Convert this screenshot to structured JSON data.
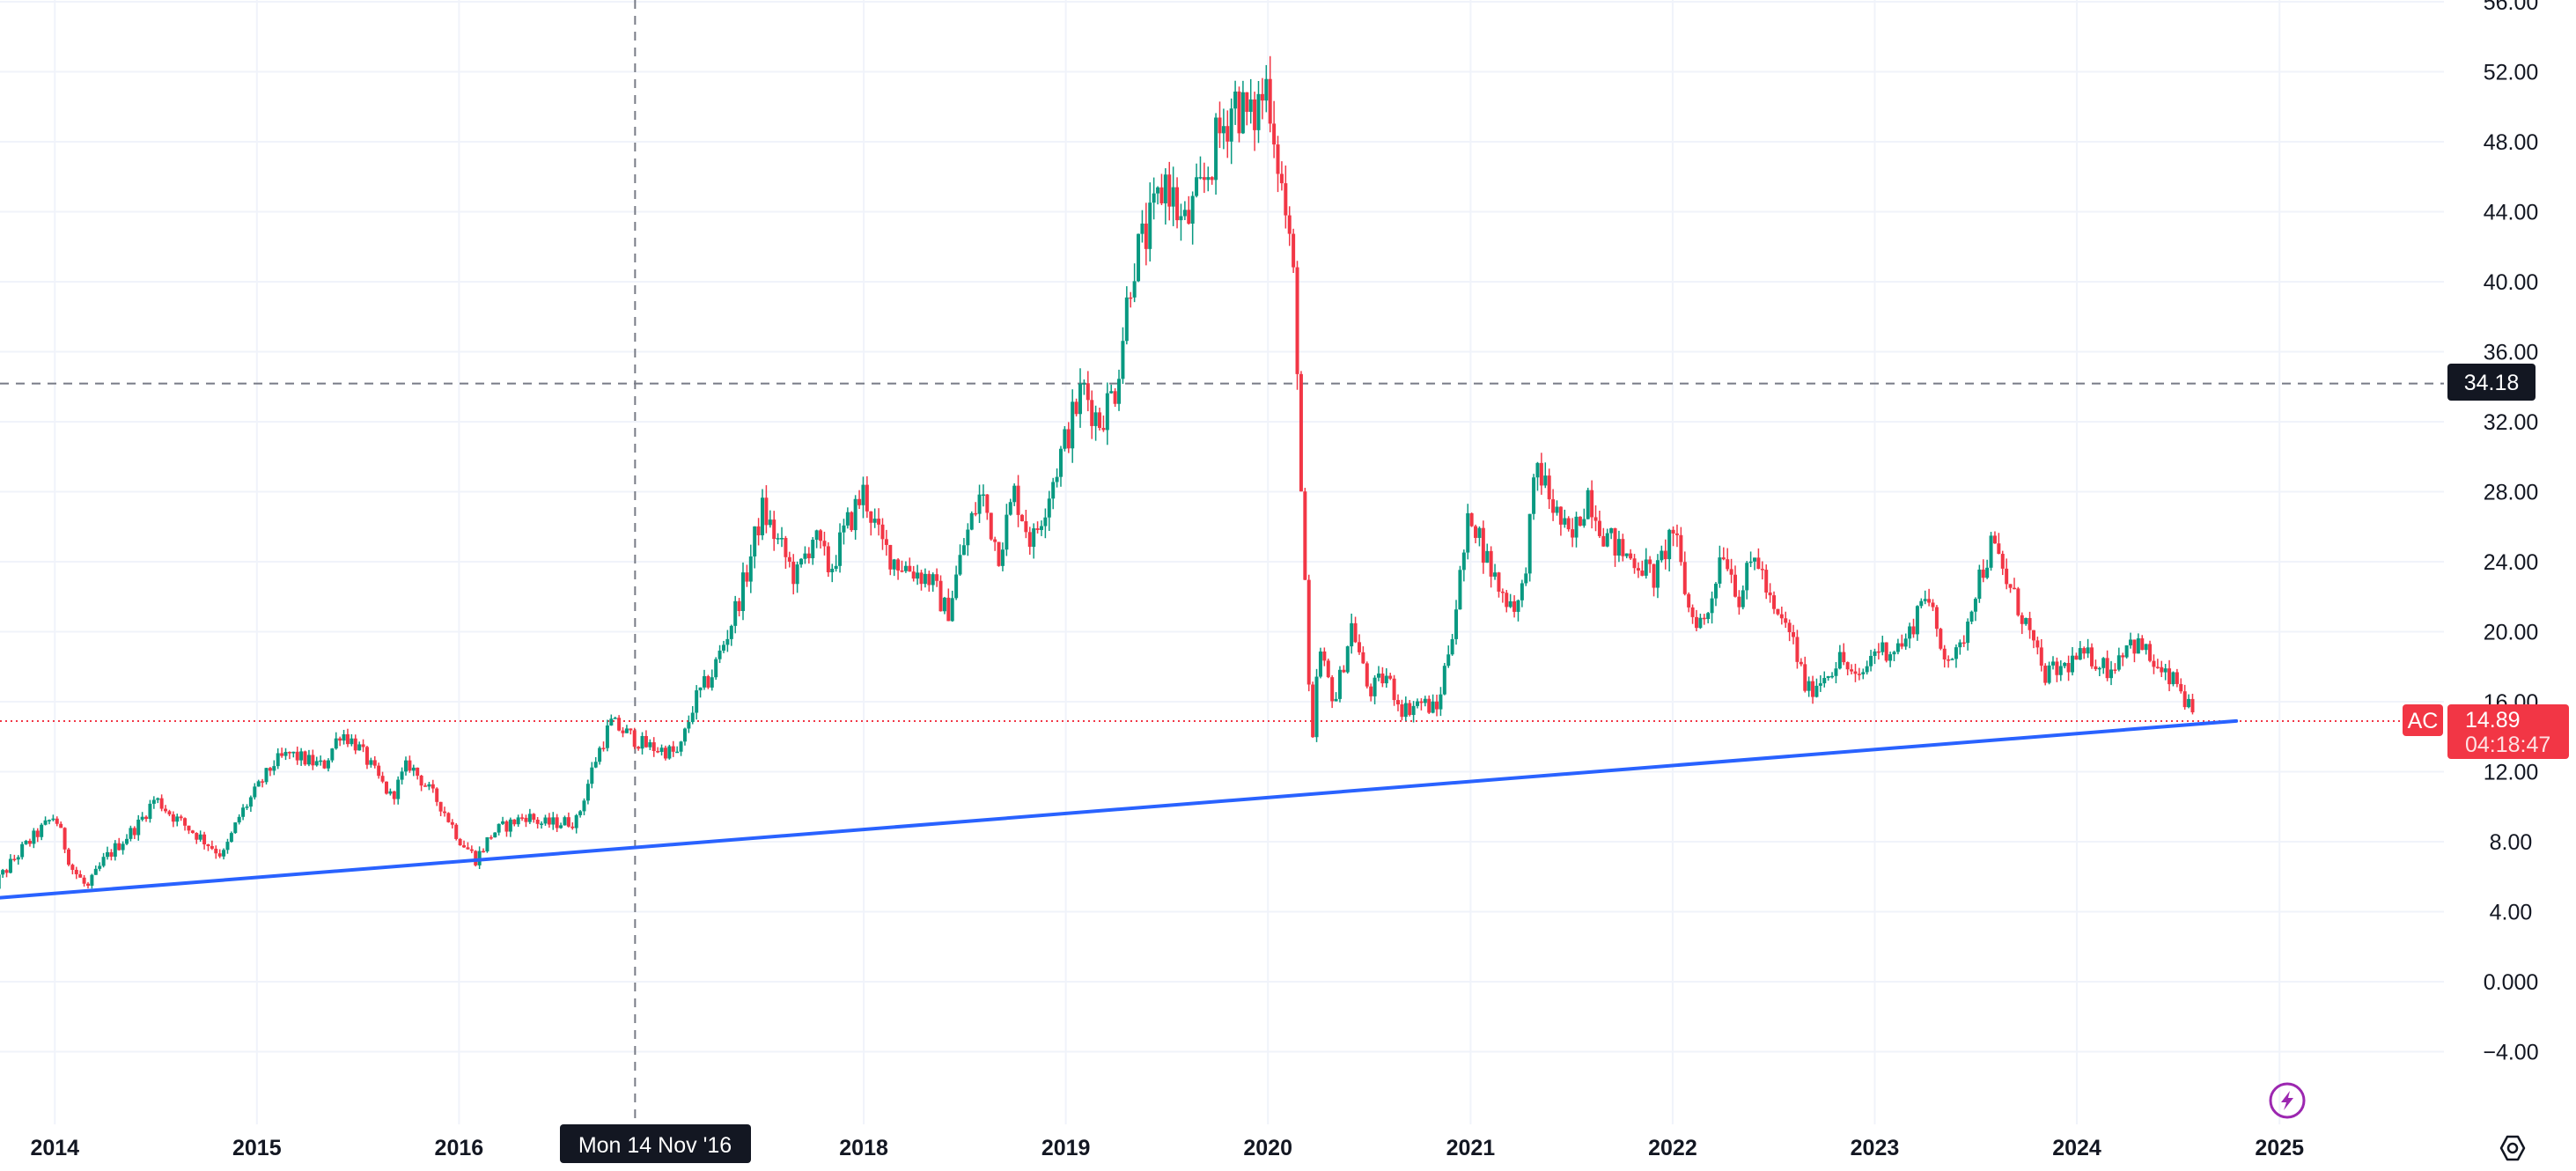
{
  "chart_data": {
    "type": "candlestick",
    "symbol": "AC",
    "x_ticks": [
      "2014",
      "2015",
      "2016",
      "2018",
      "2019",
      "2020",
      "2021",
      "2022",
      "2023",
      "2024",
      "2025"
    ],
    "y_ticks": [
      "56.00",
      "52.00",
      "48.00",
      "44.00",
      "40.00",
      "36.00",
      "32.00",
      "28.00",
      "24.00",
      "20.00",
      "16.00",
      "12.00",
      "8.00",
      "4.00",
      "0.000",
      "−4.00"
    ],
    "ylim": [
      -8.2,
      56.4
    ],
    "xlim": [
      "2013-09-24",
      "2025-10-25"
    ],
    "up_color": "#089981",
    "down_color": "#f23645",
    "trendline_color": "#2962ff",
    "trendline": [
      {
        "date": "2013-09-24",
        "price": 4.8
      },
      {
        "date": "2024-10-15",
        "price": 14.9
      }
    ],
    "last_price": {
      "value": "14.89",
      "countdown": "04:18:47",
      "y": 14.89
    },
    "crosshair": {
      "date_label": "Mon 14 Nov '16",
      "date": "2016-11-14",
      "price_label": "34.18",
      "price": 34.18
    },
    "series": [
      {
        "date": "2013-09",
        "close": 5.0
      },
      {
        "date": "2013-11",
        "close": 7.5
      },
      {
        "date": "2014-01",
        "close": 9.5
      },
      {
        "date": "2014-02",
        "close": 6.5
      },
      {
        "date": "2014-03",
        "close": 5.3
      },
      {
        "date": "2014-04",
        "close": 7.0
      },
      {
        "date": "2014-06",
        "close": 9.0
      },
      {
        "date": "2014-07",
        "close": 10.5
      },
      {
        "date": "2014-08",
        "close": 9.5
      },
      {
        "date": "2014-10",
        "close": 8.0
      },
      {
        "date": "2014-11",
        "close": 7.2
      },
      {
        "date": "2014-12",
        "close": 9.5
      },
      {
        "date": "2015-01",
        "close": 11.0
      },
      {
        "date": "2015-02",
        "close": 12.5
      },
      {
        "date": "2015-03",
        "close": 13.0
      },
      {
        "date": "2015-05",
        "close": 12.3
      },
      {
        "date": "2015-06",
        "close": 14.3
      },
      {
        "date": "2015-07",
        "close": 13.5
      },
      {
        "date": "2015-08",
        "close": 12.0
      },
      {
        "date": "2015-09",
        "close": 10.5
      },
      {
        "date": "2015-10",
        "close": 12.5
      },
      {
        "date": "2015-12",
        "close": 10.0
      },
      {
        "date": "2016-01",
        "close": 8.2
      },
      {
        "date": "2016-02",
        "close": 7.0
      },
      {
        "date": "2016-03",
        "close": 8.5
      },
      {
        "date": "2016-05",
        "close": 9.5
      },
      {
        "date": "2016-06",
        "close": 9.0
      },
      {
        "date": "2016-08",
        "close": 9.2
      },
      {
        "date": "2016-09",
        "close": 12.5
      },
      {
        "date": "2016-10",
        "close": 14.8
      },
      {
        "date": "2016-12",
        "close": 13.5
      },
      {
        "date": "2017-02",
        "close": 13.0
      },
      {
        "date": "2017-03",
        "close": 16.0
      },
      {
        "date": "2017-04",
        "close": 17.5
      },
      {
        "date": "2017-05",
        "close": 20.0
      },
      {
        "date": "2017-06",
        "close": 23.0
      },
      {
        "date": "2017-07",
        "close": 27.0
      },
      {
        "date": "2017-08",
        "close": 25.0
      },
      {
        "date": "2017-09",
        "close": 23.0
      },
      {
        "date": "2017-10",
        "close": 25.5
      },
      {
        "date": "2017-11",
        "close": 23.5
      },
      {
        "date": "2017-12",
        "close": 26.0
      },
      {
        "date": "2018-01",
        "close": 28.0
      },
      {
        "date": "2018-02",
        "close": 25.0
      },
      {
        "date": "2018-03",
        "close": 24.0
      },
      {
        "date": "2018-05",
        "close": 23.0
      },
      {
        "date": "2018-06",
        "close": 21.0
      },
      {
        "date": "2018-07",
        "close": 25.0
      },
      {
        "date": "2018-08",
        "close": 28.0
      },
      {
        "date": "2018-09",
        "close": 24.5
      },
      {
        "date": "2018-10",
        "close": 28.0
      },
      {
        "date": "2018-11",
        "close": 25.0
      },
      {
        "date": "2018-12",
        "close": 28.0
      },
      {
        "date": "2019-01",
        "close": 31.0
      },
      {
        "date": "2019-02",
        "close": 34.0
      },
      {
        "date": "2019-03",
        "close": 32.0
      },
      {
        "date": "2019-04",
        "close": 34.0
      },
      {
        "date": "2019-05",
        "close": 41.0
      },
      {
        "date": "2019-06",
        "close": 43.0
      },
      {
        "date": "2019-07",
        "close": 46.0
      },
      {
        "date": "2019-08",
        "close": 43.0
      },
      {
        "date": "2019-09",
        "close": 45.0
      },
      {
        "date": "2019-10",
        "close": 48.0
      },
      {
        "date": "2019-11",
        "close": 50.5
      },
      {
        "date": "2019-12",
        "close": 49.0
      },
      {
        "date": "2020-01",
        "close": 51.5
      },
      {
        "date": "2020-02",
        "close": 44.0
      },
      {
        "date": "2020-02-20",
        "close": 39.0
      },
      {
        "date": "2020-03",
        "close": 28.0
      },
      {
        "date": "2020-03-20",
        "close": 12.5
      },
      {
        "date": "2020-04",
        "close": 19.0
      },
      {
        "date": "2020-05",
        "close": 16.0
      },
      {
        "date": "2020-06",
        "close": 20.5
      },
      {
        "date": "2020-07",
        "close": 16.5
      },
      {
        "date": "2020-08",
        "close": 17.5
      },
      {
        "date": "2020-09",
        "close": 15.5
      },
      {
        "date": "2020-10",
        "close": 16.0
      },
      {
        "date": "2020-11",
        "close": 15.5
      },
      {
        "date": "2020-12",
        "close": 20.5
      },
      {
        "date": "2021-01",
        "close": 27.0
      },
      {
        "date": "2021-02",
        "close": 24.0
      },
      {
        "date": "2021-03",
        "close": 22.0
      },
      {
        "date": "2021-04",
        "close": 21.5
      },
      {
        "date": "2021-05",
        "close": 29.5
      },
      {
        "date": "2021-06",
        "close": 27.0
      },
      {
        "date": "2021-07",
        "close": 25.0
      },
      {
        "date": "2021-08",
        "close": 28.0
      },
      {
        "date": "2021-09",
        "close": 25.5
      },
      {
        "date": "2021-10",
        "close": 24.5
      },
      {
        "date": "2021-11",
        "close": 24.0
      },
      {
        "date": "2021-12",
        "close": 23.0
      },
      {
        "date": "2022-01",
        "close": 26.0
      },
      {
        "date": "2022-02",
        "close": 21.0
      },
      {
        "date": "2022-03",
        "close": 20.5
      },
      {
        "date": "2022-04",
        "close": 25.0
      },
      {
        "date": "2022-05",
        "close": 22.0
      },
      {
        "date": "2022-06",
        "close": 24.5
      },
      {
        "date": "2022-07",
        "close": 21.0
      },
      {
        "date": "2022-08",
        "close": 20.0
      },
      {
        "date": "2022-09",
        "close": 16.5
      },
      {
        "date": "2022-10",
        "close": 17.5
      },
      {
        "date": "2022-11",
        "close": 18.5
      },
      {
        "date": "2022-12",
        "close": 17.0
      },
      {
        "date": "2023-01",
        "close": 19.0
      },
      {
        "date": "2023-02",
        "close": 19.0
      },
      {
        "date": "2023-03",
        "close": 19.5
      },
      {
        "date": "2023-04",
        "close": 22.5
      },
      {
        "date": "2023-05",
        "close": 19.0
      },
      {
        "date": "2023-06",
        "close": 18.5
      },
      {
        "date": "2023-07",
        "close": 22.5
      },
      {
        "date": "2023-08",
        "close": 25.0
      },
      {
        "date": "2023-09",
        "close": 22.5
      },
      {
        "date": "2023-10",
        "close": 20.5
      },
      {
        "date": "2023-11",
        "close": 17.5
      },
      {
        "date": "2023-12",
        "close": 17.8
      },
      {
        "date": "2024-01",
        "close": 18.5
      },
      {
        "date": "2024-02",
        "close": 18.5
      },
      {
        "date": "2024-03",
        "close": 17.8
      },
      {
        "date": "2024-04",
        "close": 19.5
      },
      {
        "date": "2024-05",
        "close": 19.0
      },
      {
        "date": "2024-06",
        "close": 17.5
      },
      {
        "date": "2024-07",
        "close": 17.0
      },
      {
        "date": "2024-08",
        "close": 14.89
      }
    ]
  },
  "icons": {
    "flash": "lightning-bolt-icon",
    "settings": "settings-gear-icon"
  },
  "colors": {
    "icon_flash": "#9c27b0",
    "crosshair_label_bg": "#131722",
    "last_price_bg": "#f23645",
    "axis_text": "#131722"
  }
}
